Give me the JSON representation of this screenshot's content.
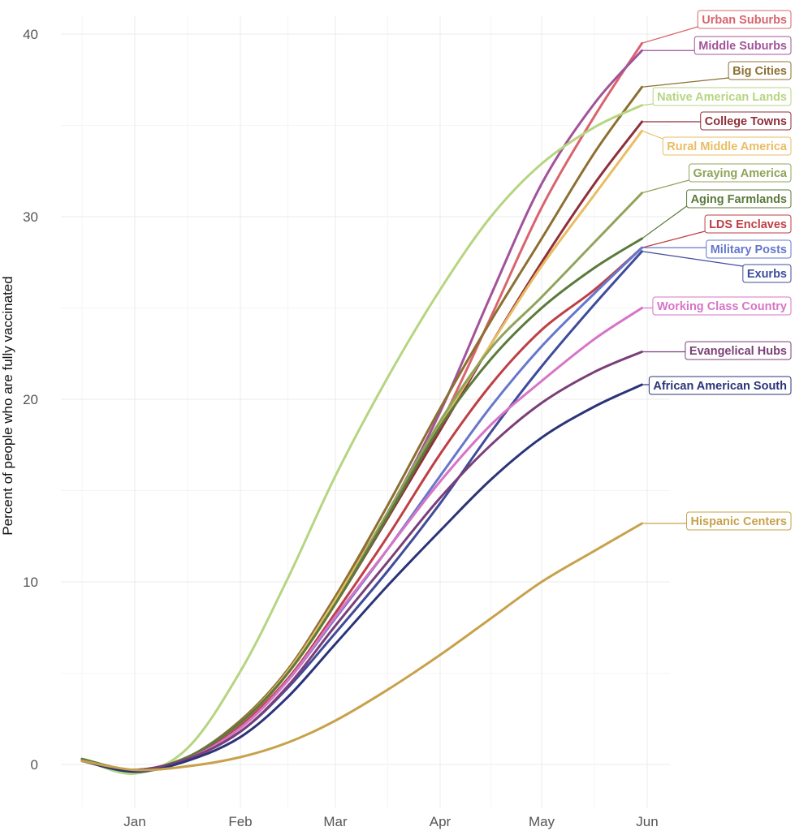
{
  "chart_data": {
    "type": "line",
    "title": "",
    "xlabel": "",
    "ylabel": "Percent of people who are fully vaccinated",
    "x_axis": {
      "ticks": [
        {
          "label": "Jan",
          "month": 0
        },
        {
          "label": "Feb",
          "month": 1
        },
        {
          "label": "Mar",
          "month": 2
        },
        {
          "label": "Apr",
          "month": 3
        },
        {
          "label": "May",
          "month": 4
        },
        {
          "label": "Jun",
          "month": 5
        }
      ]
    },
    "ylim": [
      -2.2,
      41
    ],
    "y_ticks": [
      "0",
      "10",
      "20",
      "30",
      "40"
    ],
    "grid": true,
    "legend": "direct labels at right end of lines",
    "x_months": [
      -0.5,
      0,
      0.5,
      1,
      1.5,
      2,
      2.5,
      3,
      3.5,
      4,
      4.5,
      4.95
    ],
    "series": [
      {
        "name": "Urban Suburbs",
        "color": "#d9646e",
        "values": [
          0.2,
          -0.3,
          0.4,
          2.2,
          5.0,
          9.0,
          13.5,
          18.6,
          24.5,
          30.5,
          35.5,
          39.5
        ]
      },
      {
        "name": "Middle Suburbs",
        "color": "#a2539a",
        "values": [
          0.2,
          -0.3,
          0.4,
          2.4,
          5.2,
          9.2,
          13.8,
          19.3,
          25.7,
          31.8,
          36.2,
          39.1
        ]
      },
      {
        "name": "Big Cities",
        "color": "#8c7032",
        "values": [
          0.3,
          -0.3,
          0.4,
          2.4,
          5.2,
          9.2,
          14.2,
          19.5,
          24.3,
          28.8,
          33.5,
          37.1
        ]
      },
      {
        "name": "Native American Lands",
        "color": "#b6d581",
        "values": [
          0.3,
          -0.5,
          0.9,
          5.1,
          10.2,
          15.8,
          21.2,
          26.0,
          30.0,
          32.9,
          34.9,
          36.1
        ]
      },
      {
        "name": "College Towns",
        "color": "#8f2f3a",
        "values": [
          0.2,
          -0.3,
          0.4,
          2.3,
          5.0,
          8.8,
          13.5,
          18.3,
          23.0,
          27.5,
          31.8,
          35.2
        ]
      },
      {
        "name": "Rural Middle America",
        "color": "#e9bd63",
        "values": [
          0.2,
          -0.3,
          0.4,
          2.3,
          5.1,
          9.0,
          13.8,
          18.6,
          23.0,
          27.3,
          31.2,
          34.7
        ]
      },
      {
        "name": "Graying America",
        "color": "#8fa45a",
        "values": [
          0.3,
          -0.3,
          0.4,
          2.3,
          5.0,
          8.8,
          13.8,
          18.8,
          22.8,
          25.6,
          28.6,
          31.3
        ]
      },
      {
        "name": "Aging Farmlands",
        "color": "#5b7a3b",
        "values": [
          0.3,
          -0.3,
          0.4,
          2.3,
          5.0,
          8.8,
          13.6,
          18.5,
          22.2,
          25.0,
          27.2,
          28.8
        ]
      },
      {
        "name": "LDS Enclaves",
        "color": "#be3f45",
        "values": [
          0.2,
          -0.3,
          0.3,
          2.1,
          4.7,
          8.3,
          12.5,
          17.0,
          20.8,
          23.8,
          26.0,
          28.3
        ]
      },
      {
        "name": "Military Posts",
        "color": "#6677cc",
        "values": [
          0.2,
          -0.3,
          0.3,
          2.0,
          4.6,
          8.0,
          11.8,
          15.8,
          19.6,
          22.9,
          25.8,
          28.3
        ]
      },
      {
        "name": "Exurbs",
        "color": "#3f4c9a",
        "values": [
          0.2,
          -0.3,
          0.3,
          1.8,
          4.2,
          7.2,
          10.6,
          14.3,
          18.2,
          21.8,
          25.2,
          28.1
        ]
      },
      {
        "name": "Working Class Country",
        "color": "#d774c6",
        "values": [
          0.2,
          -0.3,
          0.3,
          2.0,
          4.6,
          8.1,
          11.8,
          15.5,
          18.6,
          21.0,
          23.3,
          25.0
        ]
      },
      {
        "name": "Evangelical Hubs",
        "color": "#7b3f78",
        "values": [
          0.2,
          -0.3,
          0.3,
          1.8,
          4.3,
          7.6,
          11.1,
          14.6,
          17.5,
          19.8,
          21.5,
          22.6
        ]
      },
      {
        "name": "African American South",
        "color": "#2b3478",
        "values": [
          0.2,
          -0.4,
          0.2,
          1.5,
          3.7,
          6.6,
          9.8,
          12.8,
          15.6,
          17.9,
          19.6,
          20.8
        ]
      },
      {
        "name": "Hispanic Centers",
        "color": "#c7a24b",
        "values": [
          0.2,
          -0.3,
          -0.1,
          0.4,
          1.2,
          2.4,
          4.1,
          6.0,
          8.0,
          10.0,
          11.7,
          13.2
        ]
      }
    ]
  }
}
